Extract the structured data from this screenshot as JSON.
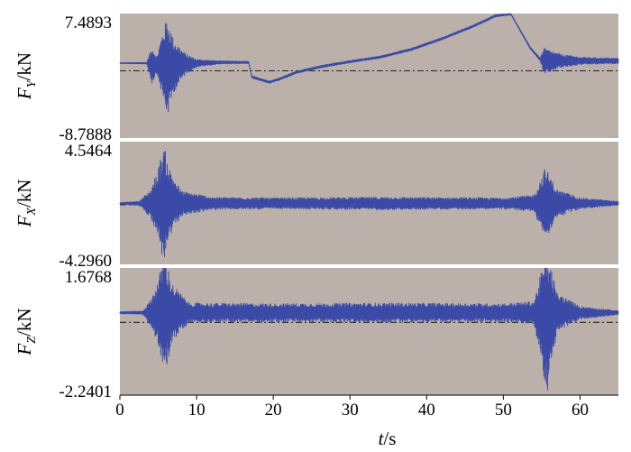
{
  "chart_data": {
    "type": "line",
    "x_axis": {
      "label_var": "t",
      "label_unit": "/s",
      "range": [
        0,
        65
      ],
      "ticks": [
        "0",
        "10",
        "20",
        "30",
        "40",
        "50",
        "60"
      ],
      "tick_values": [
        0,
        10,
        20,
        30,
        40,
        50,
        60
      ]
    },
    "panels": [
      {
        "ylabel_var": "F",
        "ylabel_sub": "Y",
        "ylabel_unit": "/kN",
        "ymax_label": "7.4893",
        "ymin_label": "-8.7888",
        "ylim": [
          -8.7888,
          7.4893
        ],
        "baseline": 0,
        "envelope": [
          {
            "t": 0,
            "c": 1.0,
            "a": 0.05
          },
          {
            "t": 3.5,
            "c": 1.0,
            "a": 0.1
          },
          {
            "t": 4.2,
            "c": 0.8,
            "a": 2.5
          },
          {
            "t": 4.8,
            "c": 0.8,
            "a": 1.0
          },
          {
            "t": 5.6,
            "c": 0.8,
            "a": 4.5
          },
          {
            "t": 6.2,
            "c": 0.5,
            "a": 6.5
          },
          {
            "t": 7.0,
            "c": 0.6,
            "a": 3.5
          },
          {
            "t": 8.5,
            "c": 0.9,
            "a": 1.4
          },
          {
            "t": 10,
            "c": 1.0,
            "a": 0.5
          },
          {
            "t": 13,
            "c": 1.1,
            "a": 0.2
          },
          {
            "t": 16.8,
            "c": 1.1,
            "a": 0.15
          },
          {
            "t": 17.2,
            "c": -0.8,
            "a": 0.15
          },
          {
            "t": 19.5,
            "c": -1.5,
            "a": 0.15
          },
          {
            "t": 21,
            "c": -1.0,
            "a": 0.15
          },
          {
            "t": 23,
            "c": -0.2,
            "a": 0.15
          },
          {
            "t": 26,
            "c": 0.5,
            "a": 0.15
          },
          {
            "t": 30,
            "c": 1.2,
            "a": 0.15
          },
          {
            "t": 34,
            "c": 1.8,
            "a": 0.15
          },
          {
            "t": 38,
            "c": 2.8,
            "a": 0.15
          },
          {
            "t": 42,
            "c": 4.2,
            "a": 0.15
          },
          {
            "t": 46,
            "c": 5.8,
            "a": 0.15
          },
          {
            "t": 49,
            "c": 7.2,
            "a": 0.15
          },
          {
            "t": 51,
            "c": 7.4,
            "a": 0.1
          },
          {
            "t": 53.5,
            "c": 3.0,
            "a": 0.15
          },
          {
            "t": 54.8,
            "c": 1.5,
            "a": 0.2
          },
          {
            "t": 55.3,
            "c": 1.2,
            "a": 1.8
          },
          {
            "t": 57,
            "c": 1.3,
            "a": 1.0
          },
          {
            "t": 60,
            "c": 1.3,
            "a": 0.5
          },
          {
            "t": 65,
            "c": 1.3,
            "a": 0.35
          }
        ]
      },
      {
        "ylabel_var": "F",
        "ylabel_sub": "X",
        "ylabel_unit": "/kN",
        "ymax_label": "4.5464",
        "ymin_label": "-4.2960",
        "ylim": [
          -4.296,
          4.5464
        ],
        "baseline": 0,
        "envelope": [
          {
            "t": 0,
            "c": 0.1,
            "a": 0.05
          },
          {
            "t": 2.5,
            "c": 0.1,
            "a": 0.15
          },
          {
            "t": 4.0,
            "c": 0.1,
            "a": 1.0
          },
          {
            "t": 5.0,
            "c": 0.1,
            "a": 2.5
          },
          {
            "t": 5.7,
            "c": 0.1,
            "a": 4.3
          },
          {
            "t": 6.5,
            "c": 0.1,
            "a": 2.5
          },
          {
            "t": 8,
            "c": 0.1,
            "a": 0.9
          },
          {
            "t": 12,
            "c": 0.1,
            "a": 0.45
          },
          {
            "t": 20,
            "c": 0.1,
            "a": 0.4
          },
          {
            "t": 35,
            "c": 0.1,
            "a": 0.45
          },
          {
            "t": 50,
            "c": 0.1,
            "a": 0.4
          },
          {
            "t": 54,
            "c": 0.1,
            "a": 0.6
          },
          {
            "t": 55.5,
            "c": 0.1,
            "a": 2.6
          },
          {
            "t": 57,
            "c": 0.1,
            "a": 1.0
          },
          {
            "t": 60,
            "c": 0.1,
            "a": 0.4
          },
          {
            "t": 65,
            "c": 0.1,
            "a": 0.15
          }
        ]
      },
      {
        "ylabel_var": "F",
        "ylabel_sub": "Z",
        "ylabel_unit": "/kN",
        "ymax_label": "1.6768",
        "ymin_label": "-2.2401",
        "ylim": [
          -2.2401,
          1.6768
        ],
        "baseline": 0,
        "envelope": [
          {
            "t": 0,
            "c": 0.3,
            "a": 0.03
          },
          {
            "t": 3.0,
            "c": 0.3,
            "a": 0.05
          },
          {
            "t": 4.0,
            "c": 0.3,
            "a": 0.4
          },
          {
            "t": 5.0,
            "c": 0.3,
            "a": 1.0
          },
          {
            "t": 5.8,
            "c": 0.2,
            "a": 1.9
          },
          {
            "t": 6.8,
            "c": 0.3,
            "a": 0.9
          },
          {
            "t": 9,
            "c": 0.3,
            "a": 0.3
          },
          {
            "t": 20,
            "c": 0.3,
            "a": 0.28
          },
          {
            "t": 35,
            "c": 0.3,
            "a": 0.3
          },
          {
            "t": 50,
            "c": 0.3,
            "a": 0.28
          },
          {
            "t": 54,
            "c": 0.3,
            "a": 0.35
          },
          {
            "t": 55.3,
            "c": 0.1,
            "a": 1.8
          },
          {
            "t": 55.7,
            "c": 0.0,
            "a": 2.2
          },
          {
            "t": 57,
            "c": 0.3,
            "a": 0.6
          },
          {
            "t": 60,
            "c": 0.3,
            "a": 0.2
          },
          {
            "t": 65,
            "c": 0.3,
            "a": 0.06
          }
        ]
      }
    ],
    "colors": {
      "panel_bg": "#bbb1aa",
      "signal": "#3a4aa6",
      "baseline": "#222222",
      "separator": "#ffffff"
    },
    "grid": false
  }
}
